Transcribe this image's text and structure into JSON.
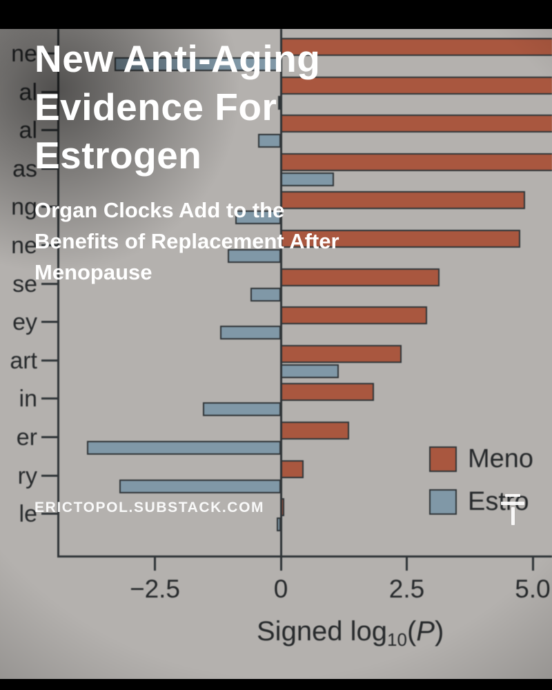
{
  "overlay": {
    "title_lines": [
      "New Anti-Aging",
      "Evidence For",
      "Estrogen"
    ],
    "subtitle_lines": [
      "Organ Clocks Add to the",
      "Benefits of Replacement After",
      "Menopause"
    ],
    "watermark": "ERICTOPOL.SUBSTACK.COM"
  },
  "chart_data": {
    "type": "bar",
    "orientation": "horizontal",
    "xlabel": "Signed log10(P)",
    "xlabel_parts": {
      "pre": "Signed log",
      "sub": "10",
      "open": "(",
      "var": "P",
      "close": ")"
    },
    "x_ticks": [
      {
        "label": "−2.5",
        "value": -2.5
      },
      {
        "label": "0",
        "value": 0
      },
      {
        "label": "2.5",
        "value": 2.5
      },
      {
        "label": "5.0",
        "value": 5.0
      }
    ],
    "x_visible_range": [
      -4.4,
      5.4
    ],
    "categories_visible": [
      "ne",
      "al",
      "al",
      "as",
      "ng",
      "ne",
      "se",
      "ey",
      "art",
      "in",
      "er",
      "ry",
      "le"
    ],
    "series": [
      {
        "name_visible": "Meno",
        "color": "#a9573f",
        "values": [
          6,
          6,
          6,
          6,
          4.85,
          4.75,
          3.15,
          2.9,
          2.4,
          1.85,
          1.35,
          0.45,
          0.07
        ],
        "clipped_right": [
          true,
          true,
          true,
          true,
          false,
          false,
          false,
          false,
          false,
          false,
          false,
          false,
          false
        ]
      },
      {
        "name_visible": "Estro",
        "color": "#8098a7",
        "values": [
          -3.3,
          -0.05,
          -0.45,
          1.05,
          -0.9,
          -1.05,
          -0.6,
          -1.2,
          1.15,
          -1.55,
          -3.85,
          -3.2,
          -0.08
        ],
        "clipped_right": [
          false,
          false,
          false,
          false,
          false,
          false,
          false,
          false,
          false,
          false,
          false,
          false,
          false
        ]
      }
    ],
    "legend_position": "lower right",
    "grid": false
  },
  "colors": {
    "photo_background": "#b4b1ae",
    "bar_outline": "#2f3437",
    "axis_text": "#26292b",
    "letterbox": "#000000",
    "overlay_text": "#ffffff"
  }
}
